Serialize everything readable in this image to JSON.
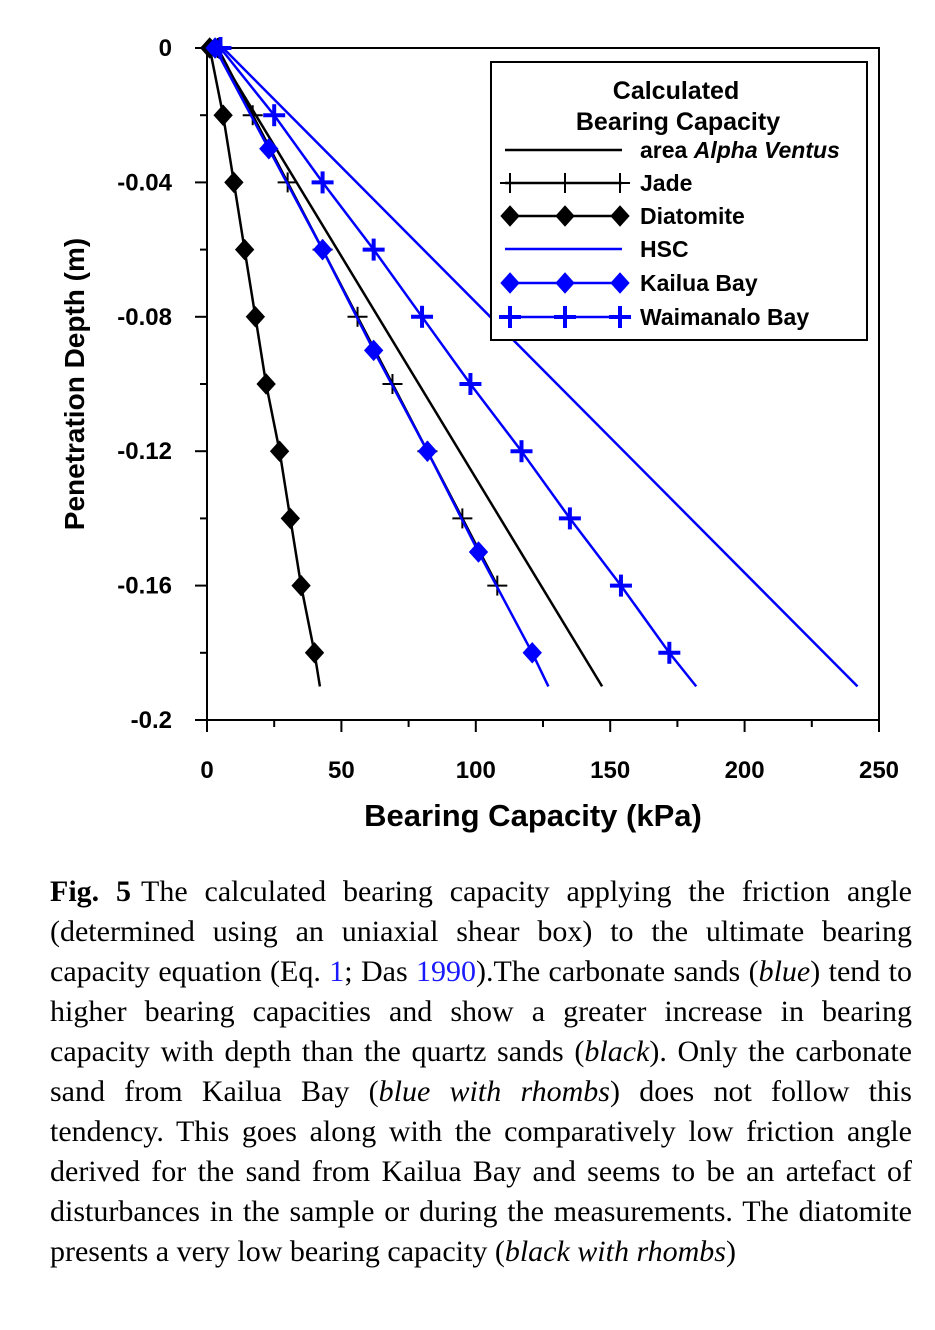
{
  "chart_data": {
    "type": "line",
    "title": "",
    "xlabel": "Bearing Capacity (kPa)",
    "ylabel": "Penetration Depth (m)",
    "xlim": [
      0,
      250
    ],
    "ylim": [
      -0.2,
      0
    ],
    "x_ticks": [
      0,
      50,
      100,
      150,
      200,
      250
    ],
    "y_ticks": [
      0,
      -0.04,
      -0.08,
      -0.12,
      -0.16,
      -0.2
    ],
    "x_tick_labels": [
      "0",
      "50",
      "100",
      "150",
      "200",
      "250"
    ],
    "y_tick_labels": [
      "0",
      "-0.04",
      "-0.08",
      "-0.12",
      "-0.16",
      "-0.2"
    ],
    "grid": false,
    "legend": {
      "placement": "top-right",
      "title_line1": "Calculated",
      "title_line2": "Bearing Capacity",
      "alpha_prefix": "area ",
      "alpha_italic": "Alpha Ventus"
    },
    "series": [
      {
        "name": "area Alpha Ventus",
        "color": "#000000",
        "marker": "none",
        "points": [
          [
            3,
            0
          ],
          [
            147,
            -0.19
          ]
        ]
      },
      {
        "name": "Jade",
        "color": "#000000",
        "marker": "plus",
        "points": [
          [
            4,
            0
          ],
          [
            17,
            -0.02
          ],
          [
            30,
            -0.04
          ],
          [
            43,
            -0.06
          ],
          [
            56,
            -0.08
          ],
          [
            69,
            -0.1
          ],
          [
            82,
            -0.12
          ],
          [
            95,
            -0.14
          ],
          [
            108,
            -0.16
          ]
        ]
      },
      {
        "name": "Diatomite",
        "color": "#000000",
        "marker": "diamond",
        "points": [
          [
            1,
            0
          ],
          [
            6,
            -0.02
          ],
          [
            10,
            -0.04
          ],
          [
            14,
            -0.06
          ],
          [
            18,
            -0.08
          ],
          [
            22,
            -0.1
          ],
          [
            27,
            -0.12
          ],
          [
            31,
            -0.14
          ],
          [
            35,
            -0.16
          ],
          [
            40,
            -0.18
          ],
          [
            42,
            -0.19
          ]
        ]
      },
      {
        "name": "HSC",
        "color": "#0000ff",
        "marker": "none",
        "points": [
          [
            6,
            0
          ],
          [
            242,
            -0.19
          ]
        ]
      },
      {
        "name": "Kailua Bay",
        "color": "#0000ff",
        "marker": "diamond",
        "points": [
          [
            3,
            0
          ],
          [
            23,
            -0.03
          ],
          [
            43,
            -0.06
          ],
          [
            62,
            -0.09
          ],
          [
            82,
            -0.12
          ],
          [
            101,
            -0.15
          ],
          [
            121,
            -0.18
          ],
          [
            127,
            -0.19
          ]
        ]
      },
      {
        "name": "Waimanalo Bay",
        "color": "#0000ff",
        "marker": "plus",
        "points": [
          [
            5,
            0
          ],
          [
            25,
            -0.02
          ],
          [
            43,
            -0.04
          ],
          [
            62,
            -0.06
          ],
          [
            80,
            -0.08
          ],
          [
            98,
            -0.1
          ],
          [
            117,
            -0.12
          ],
          [
            135,
            -0.14
          ],
          [
            154,
            -0.16
          ],
          [
            172,
            -0.18
          ],
          [
            182,
            -0.19
          ]
        ]
      }
    ]
  },
  "caption": {
    "label": "Fig. 5",
    "t1": "The calculated bearing capacity applying the friction angle (determined using an uniaxial shear box) to the ultimate bearing capacity equation (Eq. ",
    "ref1": "1",
    "t2": "; Das ",
    "ref2": "1990",
    "t3": ").The carbonate sands (",
    "i1": "blue",
    "t4": ") tend to higher bearing capacities and show a greater increase in bearing capacity with depth than the quartz sands (",
    "i2": "black",
    "t5": "). Only the carbonate sand from Kailua Bay (",
    "i3": "blue with rhombs",
    "t6": ") does not follow this tendency. This goes along with the comparatively low friction angle derived for the sand from Kailua Bay and seems to be an artefact of disturbances in the sample or during the measurements. The diatomite presents a very low bearing capacity (",
    "i4": "black with rhombs",
    "t7": ")"
  }
}
